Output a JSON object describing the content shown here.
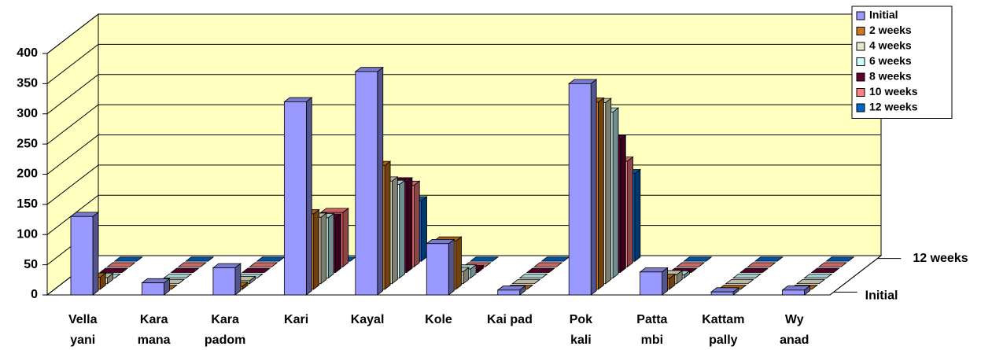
{
  "chart_data": {
    "type": "bar3d",
    "categories": [
      "Vella\nyani",
      "Kara\nmana",
      "Kara\npadom",
      "Kari",
      "Kayal",
      "Kole",
      "Kai pad",
      "Pok\nkali",
      "Patta\nmbi",
      "Kattam\npally",
      "Wy\nanad"
    ],
    "series": [
      {
        "name": "Initial",
        "color": "#9999ff",
        "values": [
          130,
          20,
          45,
          320,
          370,
          85,
          8,
          350,
          38,
          5,
          8
        ]
      },
      {
        "name": "2 weeks",
        "color": "#cc7a1a",
        "values": [
          20,
          0,
          5,
          125,
          205,
          80,
          0,
          310,
          18,
          0,
          0
        ]
      },
      {
        "name": "4 weeks",
        "color": "#e6e6cc",
        "values": [
          10,
          0,
          5,
          110,
          170,
          20,
          0,
          300,
          15,
          0,
          0
        ]
      },
      {
        "name": "6 weeks",
        "color": "#ccffff",
        "values": [
          0,
          0,
          0,
          100,
          155,
          15,
          0,
          275,
          5,
          0,
          0
        ]
      },
      {
        "name": "8 weeks",
        "color": "#660033",
        "values": [
          0,
          0,
          0,
          90,
          150,
          5,
          0,
          220,
          0,
          0,
          0
        ]
      },
      {
        "name": "10 weeks",
        "color": "#ff8080",
        "values": [
          0,
          0,
          0,
          90,
          135,
          0,
          0,
          175,
          0,
          0,
          0
        ]
      },
      {
        "name": "12 weeks",
        "color": "#0066cc",
        "values": [
          0,
          0,
          0,
          0,
          100,
          0,
          0,
          145,
          0,
          0,
          0
        ]
      }
    ],
    "ylim": [
      0,
      400
    ],
    "yticks": [
      0,
      50,
      100,
      150,
      200,
      250,
      300,
      350,
      400
    ],
    "grid": true,
    "legend": "top-right"
  }
}
